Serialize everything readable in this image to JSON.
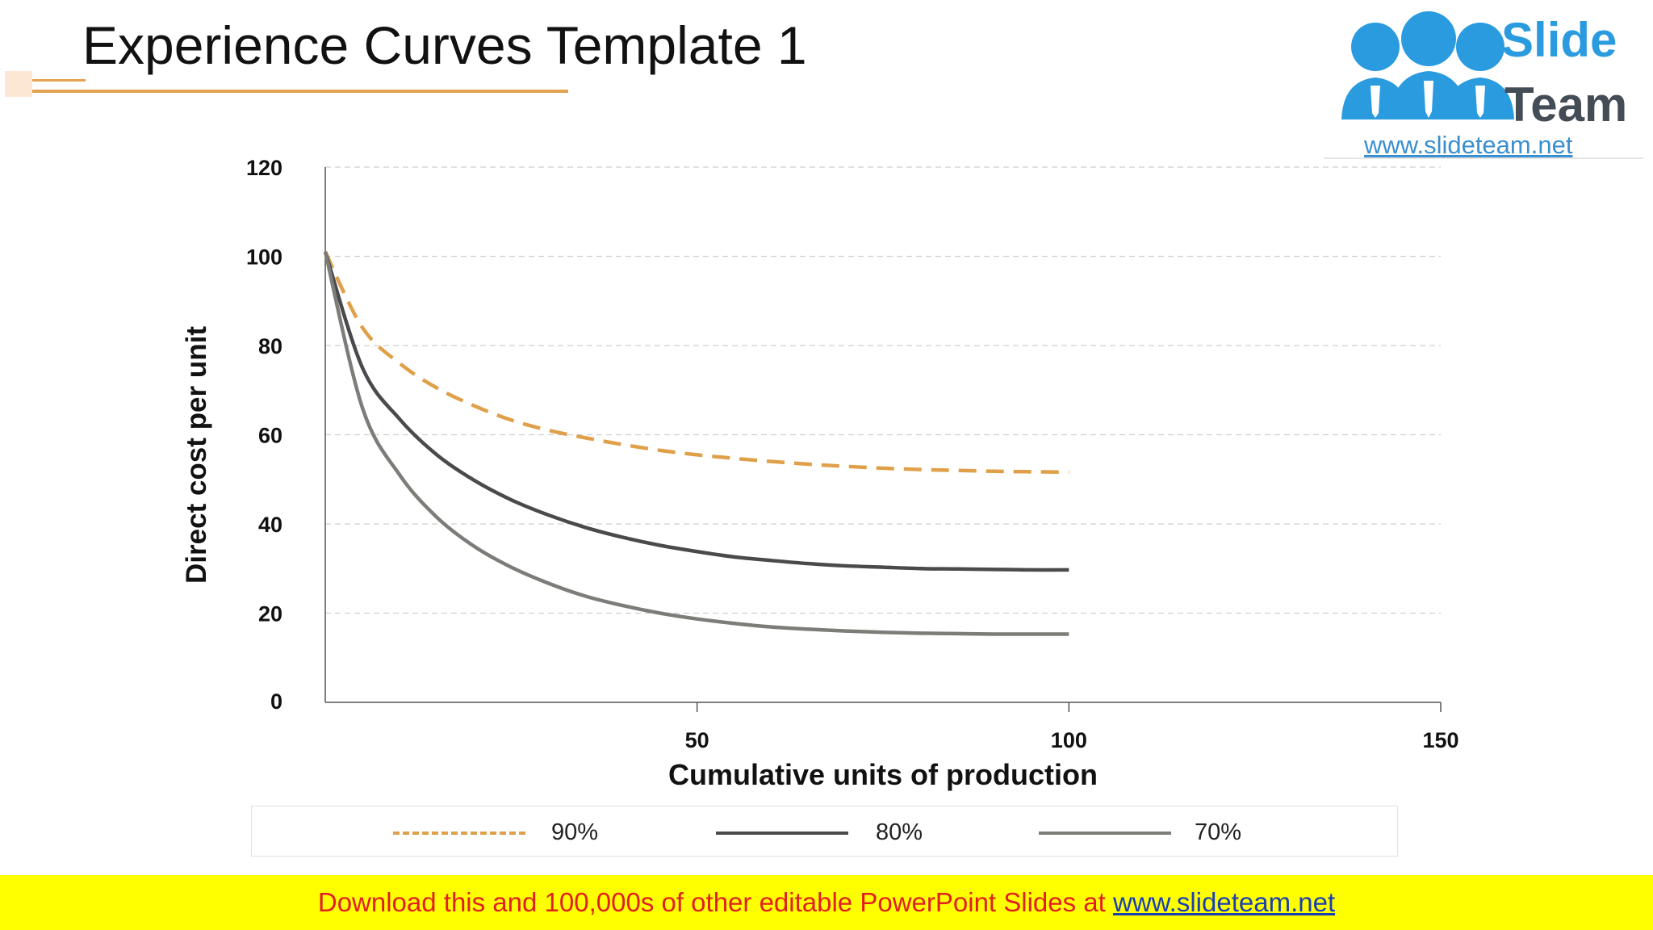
{
  "slide": {
    "title": "Experience Curves Template 1"
  },
  "logo": {
    "word1": "Slide",
    "word2": "Team",
    "url": "www.slideteam.net"
  },
  "banner": {
    "text": "Download this and 100,000s of other editable PowerPoint Slides at ",
    "link": "www.slideteam.net",
    "text_color": "#e02020",
    "link_color": "#1a3fb5",
    "background": "#ffff00"
  },
  "chart_data": {
    "type": "line",
    "title": "",
    "xlabel": "Cumulative units of production",
    "ylabel": "Direct cost per unit",
    "xlim": [
      0,
      150
    ],
    "ylim": [
      0,
      120
    ],
    "xticks": [
      50,
      100,
      150
    ],
    "yticks": [
      0,
      20,
      40,
      60,
      80,
      100,
      120
    ],
    "grid": "horizontal dashed",
    "legend_position": "bottom",
    "x": [
      0,
      5,
      10,
      15,
      20,
      25,
      30,
      35,
      40,
      45,
      50,
      55,
      60,
      65,
      70,
      75,
      80,
      85,
      90,
      95,
      100
    ],
    "series": [
      {
        "name": "90%",
        "color": "#e0a04a",
        "style": "dashed",
        "values": [
          101,
          84,
          76,
          70.5,
          66.5,
          63.3,
          61,
          59.3,
          57.8,
          56.5,
          55.5,
          54.7,
          54,
          53.4,
          52.9,
          52.5,
          52.2,
          52,
          51.8,
          51.7,
          51.6
        ]
      },
      {
        "name": "80%",
        "color": "#4a4a4c",
        "style": "solid",
        "values": [
          101,
          75,
          63.5,
          55.5,
          49.8,
          45.4,
          42,
          39.2,
          37,
          35.2,
          33.8,
          32.6,
          31.8,
          31.1,
          30.6,
          30.3,
          30,
          29.9,
          29.8,
          29.7,
          29.7
        ]
      },
      {
        "name": "70%",
        "color": "#7c7c78",
        "style": "solid",
        "values": [
          101,
          66,
          51,
          41.5,
          35,
          30.3,
          26.7,
          23.8,
          21.7,
          20,
          18.7,
          17.7,
          16.9,
          16.4,
          16,
          15.7,
          15.5,
          15.4,
          15.3,
          15.3,
          15.3
        ]
      }
    ]
  }
}
